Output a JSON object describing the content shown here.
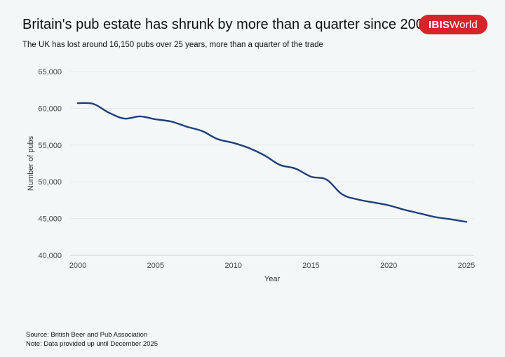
{
  "header": {
    "title": "Britain's pub estate has shrunk by more than a quarter since 2000",
    "subtitle": "The UK has lost around 16,150 pubs over 25 years, more than a quarter of the trade"
  },
  "logo": {
    "part1": "IBIS",
    "part2": "World",
    "color": "#d9232a"
  },
  "footer": {
    "source": "Source: British Beer and Pub Association",
    "note": "Note: Data provided up until December 2025"
  },
  "chart_data": {
    "type": "line",
    "xlabel": "Year",
    "ylabel": "Number of pubs",
    "xlim": [
      2000,
      2025
    ],
    "ylim": [
      40000,
      65000
    ],
    "x_ticks": [
      2000,
      2005,
      2010,
      2015,
      2020,
      2025
    ],
    "x_tick_labels": [
      "2000",
      "2005",
      "2010",
      "2015",
      "2020",
      "2025"
    ],
    "y_ticks": [
      40000,
      45000,
      50000,
      55000,
      60000,
      65000
    ],
    "y_tick_labels": [
      "40,000",
      "45,000",
      "50,000",
      "55,000",
      "60,000",
      "65,000"
    ],
    "grid": true,
    "line_color": "#1d3f7a",
    "series": [
      {
        "x": [
          2000,
          2001,
          2002,
          2003,
          2004,
          2005,
          2006,
          2007,
          2008,
          2009,
          2010,
          2011,
          2012,
          2013,
          2014,
          2015,
          2016,
          2017,
          2018,
          2019,
          2020,
          2021,
          2022,
          2023,
          2024,
          2025
        ],
        "values": [
          60700,
          60600,
          59400,
          58600,
          58900,
          58500,
          58200,
          57500,
          56900,
          55800,
          55300,
          54600,
          53600,
          52300,
          51800,
          50700,
          50300,
          48300,
          47600,
          47200,
          46800,
          46200,
          45700,
          45200,
          44900,
          44550
        ]
      }
    ]
  }
}
